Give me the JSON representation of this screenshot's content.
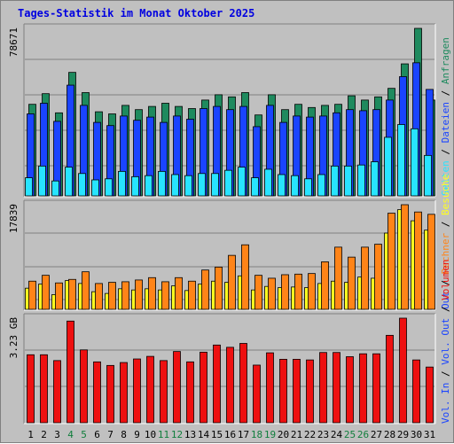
{
  "title": "Tages-Statistik im Monat Oktober 2025",
  "colors": {
    "anfragen": "#1e8a5e",
    "dateien": "#1a44ff",
    "seiten": "#28e4ff",
    "besuche": "#ffff20",
    "rechner": "#ff8418",
    "volumen": "#ee1010",
    "weekend_label": "#107e3c",
    "weekday_label": "#000000",
    "panel_bg": "#c0c0c0",
    "grid": "#7f7f7f"
  },
  "chart_data": [
    {
      "type": "bar",
      "name": "hits-pages-files",
      "ymax_label": "78671",
      "ylim": [
        0,
        78671
      ],
      "categories": [
        "1",
        "2",
        "3",
        "4",
        "5",
        "6",
        "7",
        "8",
        "9",
        "10",
        "11",
        "12",
        "13",
        "14",
        "15",
        "16",
        "17",
        "18",
        "19",
        "20",
        "21",
        "22",
        "23",
        "24",
        "25",
        "26",
        "27",
        "28",
        "29",
        "30",
        "31"
      ],
      "weekend_days": [
        4,
        5,
        11,
        12,
        18,
        19,
        25,
        26
      ],
      "series": [
        {
          "name": "Anfragen",
          "values": [
            43000,
            48000,
            39000,
            58000,
            48500,
            39500,
            38500,
            42500,
            40500,
            42000,
            43500,
            42000,
            41000,
            45000,
            47500,
            46500,
            48500,
            38000,
            47500,
            40500,
            43000,
            41500,
            42500,
            43000,
            47000,
            45000,
            46500,
            50500,
            62000,
            78671,
            45000
          ]
        },
        {
          "name": "Dateien",
          "values": [
            38500,
            43500,
            35000,
            52000,
            42500,
            34500,
            33000,
            37500,
            35500,
            37000,
            34500,
            37500,
            36000,
            41000,
            42000,
            40500,
            42000,
            32500,
            42500,
            34500,
            37500,
            37000,
            37500,
            39000,
            40500,
            40000,
            40500,
            45000,
            56000,
            62500,
            50000
          ]
        },
        {
          "name": "Seiten",
          "values": [
            8500,
            14000,
            7000,
            13500,
            10500,
            7500,
            8000,
            11500,
            9000,
            9500,
            11500,
            10000,
            9500,
            10500,
            10500,
            12000,
            13500,
            8500,
            12500,
            10000,
            9500,
            8000,
            10000,
            14000,
            14000,
            14500,
            16000,
            27500,
            33500,
            31500,
            19000
          ]
        }
      ],
      "legend": [
        "Anfragen",
        "Dateien",
        "Seiten"
      ]
    },
    {
      "type": "bar",
      "name": "visits-sites",
      "ymax_label": "17839",
      "ylim": [
        0,
        17839
      ],
      "categories": [
        "1",
        "2",
        "3",
        "4",
        "5",
        "6",
        "7",
        "8",
        "9",
        "10",
        "11",
        "12",
        "13",
        "14",
        "15",
        "16",
        "17",
        "18",
        "19",
        "20",
        "21",
        "22",
        "23",
        "24",
        "25",
        "26",
        "27",
        "28",
        "29",
        "30",
        "31"
      ],
      "series": [
        {
          "name": "Besuche",
          "values": [
            3600,
            4300,
            2500,
            4900,
            4400,
            3000,
            2700,
            3500,
            3300,
            3500,
            3300,
            4000,
            3200,
            4300,
            4800,
            4600,
            5700,
            3300,
            3900,
            3700,
            3800,
            3700,
            4400,
            4800,
            4600,
            5500,
            5300,
            13000,
            17000,
            15100,
            13500
          ]
        },
        {
          "name": "Rechner",
          "values": [
            4800,
            5800,
            4500,
            5100,
            6400,
            4400,
            4600,
            4700,
            5000,
            5400,
            4700,
            5400,
            4800,
            6700,
            7200,
            9200,
            11000,
            5800,
            5300,
            5900,
            6000,
            6100,
            8100,
            10600,
            8900,
            10600,
            11100,
            16400,
            17839,
            16600,
            16200
          ]
        }
      ],
      "legend": [
        "Besuche",
        "Rechner"
      ]
    },
    {
      "type": "bar",
      "name": "volume",
      "ymax_label": "3.23 GB",
      "ylim": [
        0,
        3.23
      ],
      "categories": [
        "1",
        "2",
        "3",
        "4",
        "5",
        "6",
        "7",
        "8",
        "9",
        "10",
        "11",
        "12",
        "13",
        "14",
        "15",
        "16",
        "17",
        "18",
        "19",
        "20",
        "21",
        "22",
        "23",
        "24",
        "25",
        "26",
        "27",
        "28",
        "29",
        "30",
        "31"
      ],
      "series": [
        {
          "name": "Volumen",
          "values": [
            2.1,
            2.1,
            1.92,
            3.14,
            2.25,
            1.88,
            1.77,
            1.86,
            1.97,
            2.05,
            1.92,
            2.2,
            1.88,
            2.18,
            2.4,
            2.33,
            2.45,
            1.78,
            2.16,
            1.96,
            1.96,
            1.94,
            2.17,
            2.17,
            2.04,
            2.13,
            2.13,
            2.7,
            3.23,
            1.94,
            1.72
          ]
        }
      ],
      "legend": [
        "Volumen"
      ]
    }
  ],
  "right_legend": {
    "panel1": [
      "Anfragen",
      "Dateien",
      "Seiten"
    ],
    "panel2": [
      "Besuche",
      "Rechner",
      "Out"
    ],
    "panel3": [
      "Volumen",
      "Vol. Out",
      "Vol. In"
    ]
  }
}
